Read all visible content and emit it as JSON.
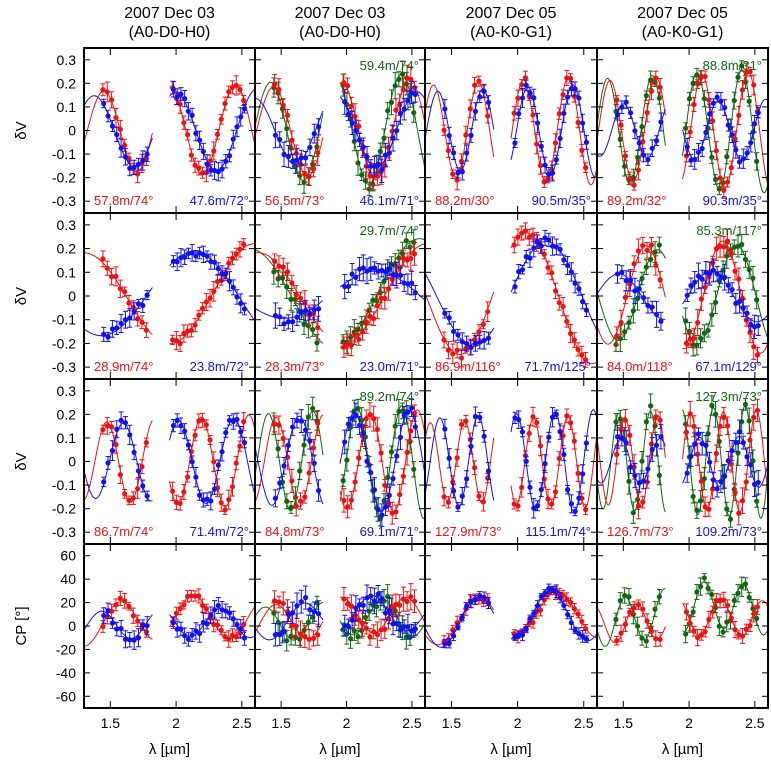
{
  "chart_data": {
    "type": "scatter",
    "layout": "4x4 panel grid",
    "columns": [
      {
        "date": "2007 Dec 03",
        "config": "(A0-D0-H0)"
      },
      {
        "date": "2007 Dec 03",
        "config": "(A0-D0-H0)"
      },
      {
        "date": "2007 Dec 05",
        "config": "(A0-K0-G1)"
      },
      {
        "date": "2007 Dec 05",
        "config": "(A0-K0-G1)"
      }
    ],
    "row_ylabels": [
      "δV",
      "δV",
      "δV",
      "CP [°]"
    ],
    "xlabel": "λ [µm]",
    "xlim": [
      1.3,
      2.6
    ],
    "x_ticks": [
      1.5,
      2,
      2.5
    ],
    "dv_ylim": [
      -0.35,
      0.35
    ],
    "dv_ticks": [
      0.3,
      0.2,
      0.1,
      0,
      -0.1,
      -0.2,
      -0.3
    ],
    "cp_ylim": [
      -70,
      70
    ],
    "cp_ticks": [
      60,
      40,
      20,
      0,
      -20,
      -40,
      -60
    ],
    "colors": {
      "red": "#ee1111",
      "blue": "#1111ee",
      "green": "#116611"
    },
    "panels": [
      [
        {
          "labels": [
            {
              "text": "57.8m/74°",
              "color": "red",
              "pos": "bottom-left"
            },
            {
              "text": "47.6m/72°",
              "color": "blue",
              "pos": "bottom-right"
            }
          ],
          "series": [
            {
              "color": "red",
              "amp": 0.18,
              "per": 0.5,
              "phase": 2.2,
              "err": 0.03
            },
            {
              "color": "blue",
              "amp": 0.16,
              "per": 0.62,
              "phase": 0.2,
              "err": 0.03
            }
          ]
        },
        {
          "labels": [
            {
              "text": "59.4m/74°",
              "color": "green",
              "pos": "top-right"
            },
            {
              "text": "56.5m/73°",
              "color": "red",
              "pos": "bottom-left"
            },
            {
              "text": "46.1m/71°",
              "color": "blue",
              "pos": "bottom-right"
            }
          ],
          "series": [
            {
              "color": "green",
              "amp": 0.22,
              "per": 0.5,
              "phase": 2.6,
              "err": 0.04
            },
            {
              "color": "red",
              "amp": 0.2,
              "per": 0.52,
              "phase": 3.0,
              "err": 0.04
            },
            {
              "color": "blue",
              "amp": 0.15,
              "per": 0.62,
              "phase": 1.0,
              "err": 0.04
            }
          ]
        },
        {
          "labels": [
            {
              "text": "88.2m/30°",
              "color": "red",
              "pos": "bottom-left"
            },
            {
              "text": "90.5m/35°",
              "color": "blue",
              "pos": "bottom-right"
            }
          ],
          "series": [
            {
              "color": "red",
              "amp": 0.21,
              "per": 0.34,
              "phase": 1.5,
              "err": 0.03
            },
            {
              "color": "blue",
              "amp": 0.18,
              "per": 0.34,
              "phase": 0.9,
              "err": 0.03
            }
          ]
        },
        {
          "labels": [
            {
              "text": "88.8m/31°",
              "color": "green",
              "pos": "top-right"
            },
            {
              "text": "89.2m/32°",
              "color": "red",
              "pos": "bottom-left"
            },
            {
              "text": "90.3m/35°",
              "color": "blue",
              "pos": "bottom-right"
            }
          ],
          "series": [
            {
              "color": "green",
              "amp": 0.24,
              "per": 0.34,
              "phase": 1.2,
              "err": 0.03
            },
            {
              "color": "red",
              "amp": 0.23,
              "per": 0.35,
              "phase": 1.6,
              "err": 0.03
            },
            {
              "color": "blue",
              "amp": 0.12,
              "per": 0.36,
              "phase": 0.5,
              "err": 0.03
            }
          ]
        }
      ],
      [
        {
          "labels": [
            {
              "text": "28.9m/74°",
              "color": "red",
              "pos": "bottom-left"
            },
            {
              "text": "23.8m/72°",
              "color": "blue",
              "pos": "bottom-right"
            }
          ],
          "series": [
            {
              "color": "red",
              "amp": 0.2,
              "per": 1.3,
              "phase": 1.6,
              "err": 0.03
            },
            {
              "color": "blue",
              "amp": 0.18,
              "per": 1.4,
              "phase": 4.6,
              "err": 0.03
            }
          ]
        },
        {
          "labels": [
            {
              "text": "29.7m/74°",
              "color": "green",
              "pos": "top-right"
            },
            {
              "text": "28.3m/73°",
              "color": "red",
              "pos": "bottom-left"
            },
            {
              "text": "23.0m/71°",
              "color": "blue",
              "pos": "bottom-right"
            }
          ],
          "series": [
            {
              "color": "green",
              "amp": 0.22,
              "per": 1.3,
              "phase": 1.8,
              "err": 0.04
            },
            {
              "color": "red",
              "amp": 0.2,
              "per": 1.3,
              "phase": 1.5,
              "err": 0.04
            },
            {
              "color": "blue",
              "amp": 0.1,
              "per": 1.4,
              "phase": 4.2,
              "err": 0.04
            }
          ]
        },
        {
          "labels": [
            {
              "text": "86.9m/116°",
              "color": "red",
              "pos": "bottom-left"
            },
            {
              "text": "71.7m/125°",
              "color": "blue",
              "pos": "bottom-right"
            }
          ],
          "series": [
            {
              "color": "red",
              "amp": 0.26,
              "per": 1.0,
              "phase": 1.2,
              "err": 0.03
            },
            {
              "color": "blue",
              "amp": 0.22,
              "per": 1.1,
              "phase": 1.5,
              "err": 0.03
            }
          ]
        },
        {
          "labels": [
            {
              "text": "85.3m/117°",
              "color": "green",
              "pos": "top-right"
            },
            {
              "text": "84.0m/118°",
              "color": "red",
              "pos": "bottom-left"
            },
            {
              "text": "67.1m/129°",
              "color": "blue",
              "pos": "bottom-right"
            }
          ],
          "series": [
            {
              "color": "green",
              "amp": 0.2,
              "per": 0.6,
              "phase": 2.0,
              "err": 0.04
            },
            {
              "color": "red",
              "amp": 0.22,
              "per": 0.58,
              "phase": 2.3,
              "err": 0.04
            },
            {
              "color": "blue",
              "amp": 0.1,
              "per": 0.7,
              "phase": 1.0,
              "err": 0.04
            }
          ]
        }
      ],
      [
        {
          "labels": [
            {
              "text": "86.7m/74°",
              "color": "red",
              "pos": "bottom-left"
            },
            {
              "text": "71.4m/72°",
              "color": "blue",
              "pos": "bottom-right"
            }
          ],
          "series": [
            {
              "color": "red",
              "amp": 0.18,
              "per": 0.36,
              "phase": 1.0,
              "err": 0.03
            },
            {
              "color": "blue",
              "amp": 0.17,
              "per": 0.42,
              "phase": 2.8,
              "err": 0.03
            }
          ]
        },
        {
          "labels": [
            {
              "text": "89.2m/74°",
              "color": "green",
              "pos": "top-right"
            },
            {
              "text": "84.8m/73°",
              "color": "red",
              "pos": "bottom-left"
            },
            {
              "text": "69.1m/71°",
              "color": "blue",
              "pos": "bottom-right"
            }
          ],
          "series": [
            {
              "color": "green",
              "amp": 0.22,
              "per": 0.34,
              "phase": 0.8,
              "err": 0.04
            },
            {
              "color": "red",
              "amp": 0.2,
              "per": 0.36,
              "phase": 1.2,
              "err": 0.04
            },
            {
              "color": "blue",
              "amp": 0.2,
              "per": 0.42,
              "phase": 2.2,
              "err": 0.04
            }
          ]
        },
        {
          "labels": [
            {
              "text": "127.9m/73°",
              "color": "red",
              "pos": "bottom-left"
            },
            {
              "text": "115.1m/74°",
              "color": "blue",
              "pos": "bottom-right"
            }
          ],
          "series": [
            {
              "color": "red",
              "amp": 0.18,
              "per": 0.26,
              "phase": 0.6,
              "err": 0.03
            },
            {
              "color": "blue",
              "amp": 0.2,
              "per": 0.29,
              "phase": 2.4,
              "err": 0.03
            }
          ]
        },
        {
          "labels": [
            {
              "text": "127.3m/73°",
              "color": "green",
              "pos": "top-right"
            },
            {
              "text": "126.7m/73°",
              "color": "red",
              "pos": "bottom-left"
            },
            {
              "text": "109.2m/73°",
              "color": "blue",
              "pos": "bottom-right"
            }
          ],
          "series": [
            {
              "color": "green",
              "amp": 0.22,
              "per": 0.24,
              "phase": 0.9,
              "err": 0.04
            },
            {
              "color": "red",
              "amp": 0.2,
              "per": 0.25,
              "phase": 1.3,
              "err": 0.04
            },
            {
              "color": "blue",
              "amp": 0.1,
              "per": 0.3,
              "phase": 2.0,
              "err": 0.04
            }
          ]
        }
      ],
      [
        {
          "labels": [],
          "series": [
            {
              "color": "red",
              "amp": 18,
              "per": 0.55,
              "phase": 2.4,
              "err": 5,
              "offset": 8
            },
            {
              "color": "blue",
              "amp": 12,
              "per": 0.45,
              "phase": 0.4,
              "err": 6,
              "offset": 3
            }
          ]
        },
        {
          "labels": [],
          "series": [
            {
              "color": "green",
              "amp": 15,
              "per": 0.45,
              "phase": 1.2,
              "err": 8,
              "offset": 8
            },
            {
              "color": "red",
              "amp": 16,
              "per": 0.5,
              "phase": 2.1,
              "err": 8,
              "offset": 10
            },
            {
              "color": "blue",
              "amp": 14,
              "per": 0.52,
              "phase": 0.2,
              "err": 8,
              "offset": 12
            }
          ]
        },
        {
          "labels": [],
          "series": [
            {
              "color": "red",
              "amp": 18,
              "per": 0.6,
              "phase": 2.6,
              "err": 4,
              "offset": 12
            },
            {
              "color": "blue",
              "amp": 20,
              "per": 0.55,
              "phase": 1.0,
              "err": 4,
              "offset": 10
            }
          ]
        },
        {
          "labels": [],
          "series": [
            {
              "color": "green",
              "amp": 20,
              "per": 0.3,
              "phase": 1.3,
              "err": 6,
              "offset": 18
            },
            {
              "color": "red",
              "amp": 16,
              "per": 0.32,
              "phase": 1.6,
              "err": 5,
              "offset": 8
            }
          ]
        }
      ]
    ]
  }
}
